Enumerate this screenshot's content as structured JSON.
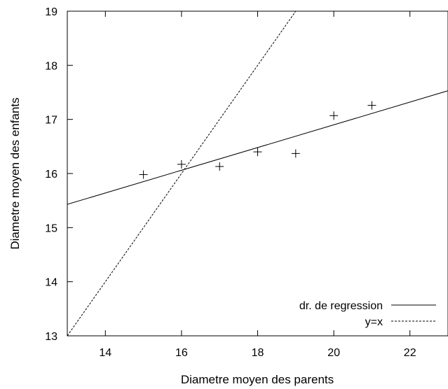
{
  "chart_data": {
    "type": "scatter",
    "title": "",
    "xlabel": "Diametre moyen des parents",
    "ylabel": "Diametre moyen des enfants",
    "xlim": [
      13,
      23
    ],
    "ylim": [
      13,
      19
    ],
    "xticks": [
      14,
      16,
      18,
      20,
      22
    ],
    "yticks": [
      13,
      14,
      15,
      16,
      17,
      18,
      19
    ],
    "grid": false,
    "legend_position": "bottom-right",
    "points": {
      "marker": "plus",
      "x": [
        15,
        16,
        17,
        18,
        19,
        20,
        21
      ],
      "y": [
        15.98,
        16.17,
        16.13,
        16.4,
        16.37,
        17.07,
        17.26
      ]
    },
    "lines": [
      {
        "name": "dr. de regression",
        "style": "solid",
        "slope": 0.21,
        "intercept": 12.7
      },
      {
        "name": "y=x",
        "style": "dashed",
        "slope": 1,
        "intercept": 0
      }
    ]
  }
}
